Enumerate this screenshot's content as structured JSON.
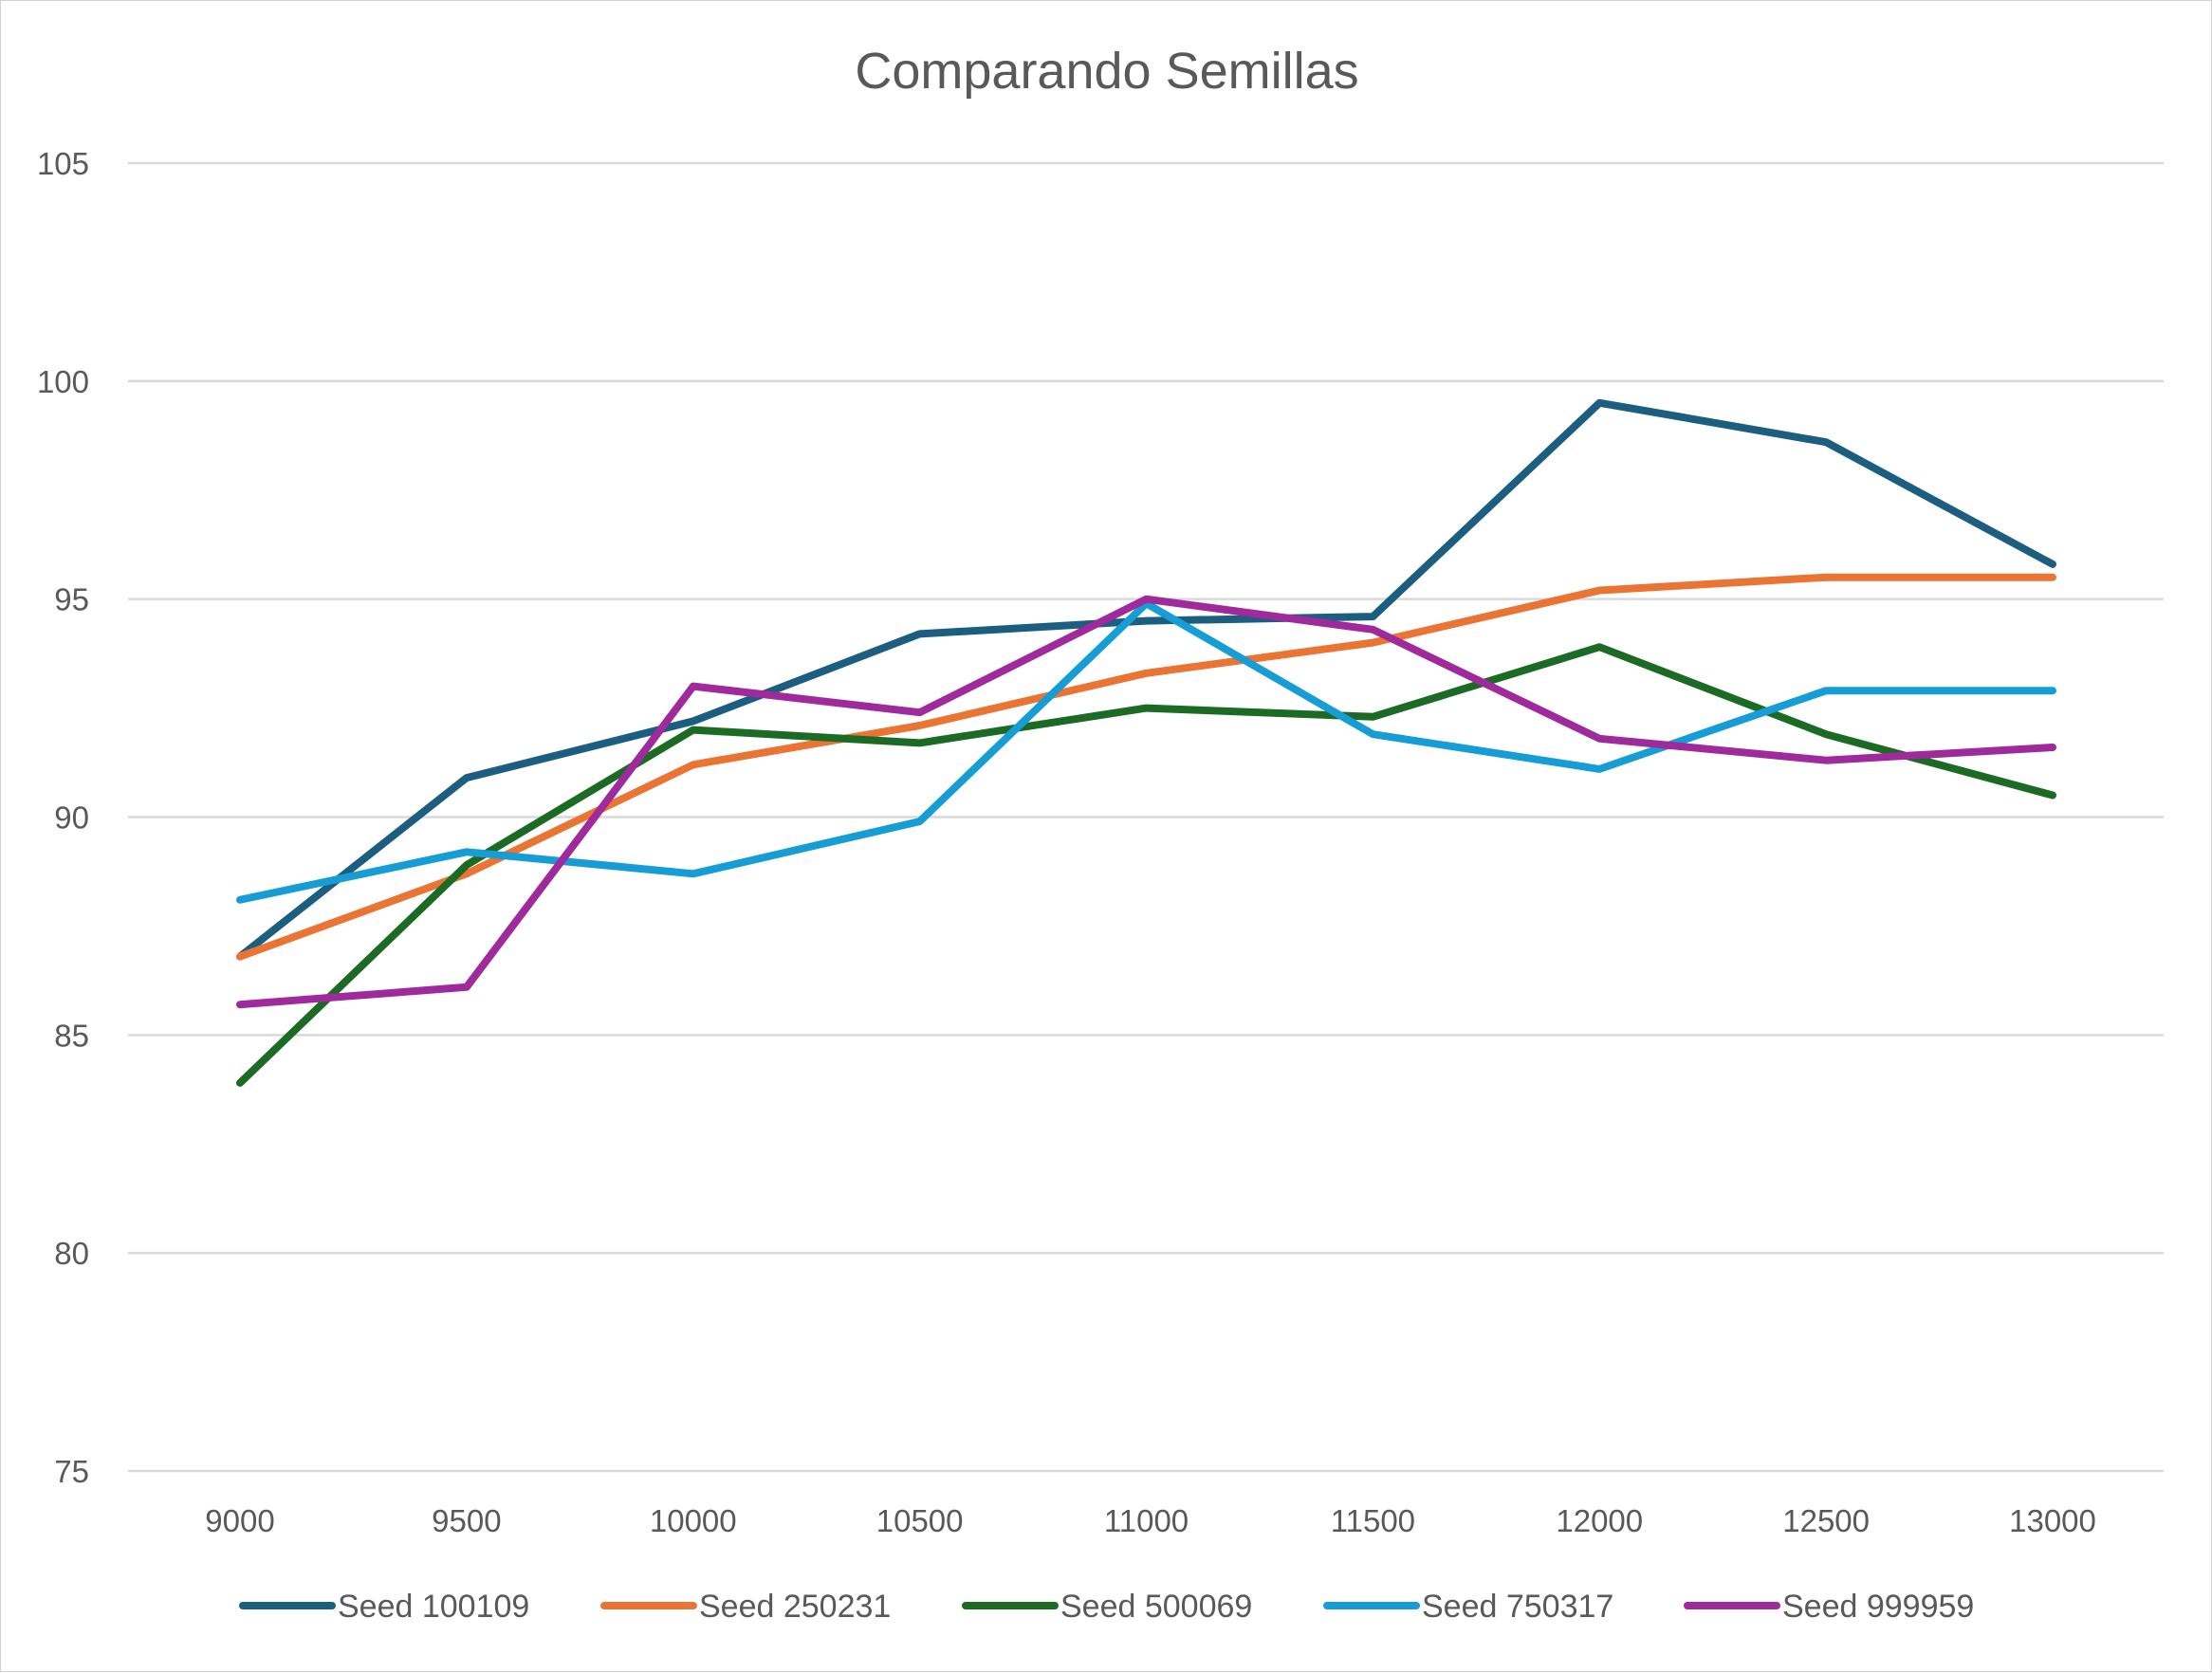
{
  "chart_data": {
    "type": "line",
    "title": "Comparando Semillas",
    "xlabel": "",
    "ylabel": "",
    "categories": [
      "9000",
      "9500",
      "10000",
      "10500",
      "11000",
      "11500",
      "12000",
      "12500",
      "13000"
    ],
    "yticks": [
      "75",
      "80",
      "85",
      "90",
      "95",
      "100",
      "105"
    ],
    "ylim": [
      75,
      105
    ],
    "grid": true,
    "legend_position": "bottom",
    "series": [
      {
        "name": "Seed 100109",
        "color": "#1b5e80",
        "values": [
          86.8,
          90.9,
          92.2,
          94.2,
          94.5,
          94.6,
          99.5,
          98.6,
          95.8
        ]
      },
      {
        "name": "Seed 250231",
        "color": "#ea7433",
        "values": [
          86.8,
          88.7,
          91.2,
          92.1,
          93.3,
          94.0,
          95.2,
          95.5,
          95.5
        ]
      },
      {
        "name": "Seed 500069",
        "color": "#1c6b25",
        "values": [
          83.9,
          88.9,
          92.0,
          91.7,
          92.5,
          92.3,
          93.9,
          91.9,
          90.5
        ]
      },
      {
        "name": "Seed 750317",
        "color": "#179dd6",
        "values": [
          88.1,
          89.2,
          88.7,
          89.9,
          94.9,
          91.9,
          91.1,
          92.9,
          92.9
        ]
      },
      {
        "name": "Seed 999959",
        "color": "#9e2a9b",
        "values": [
          85.7,
          86.1,
          93.0,
          92.4,
          95.0,
          94.3,
          91.8,
          91.3,
          91.6
        ]
      }
    ]
  }
}
